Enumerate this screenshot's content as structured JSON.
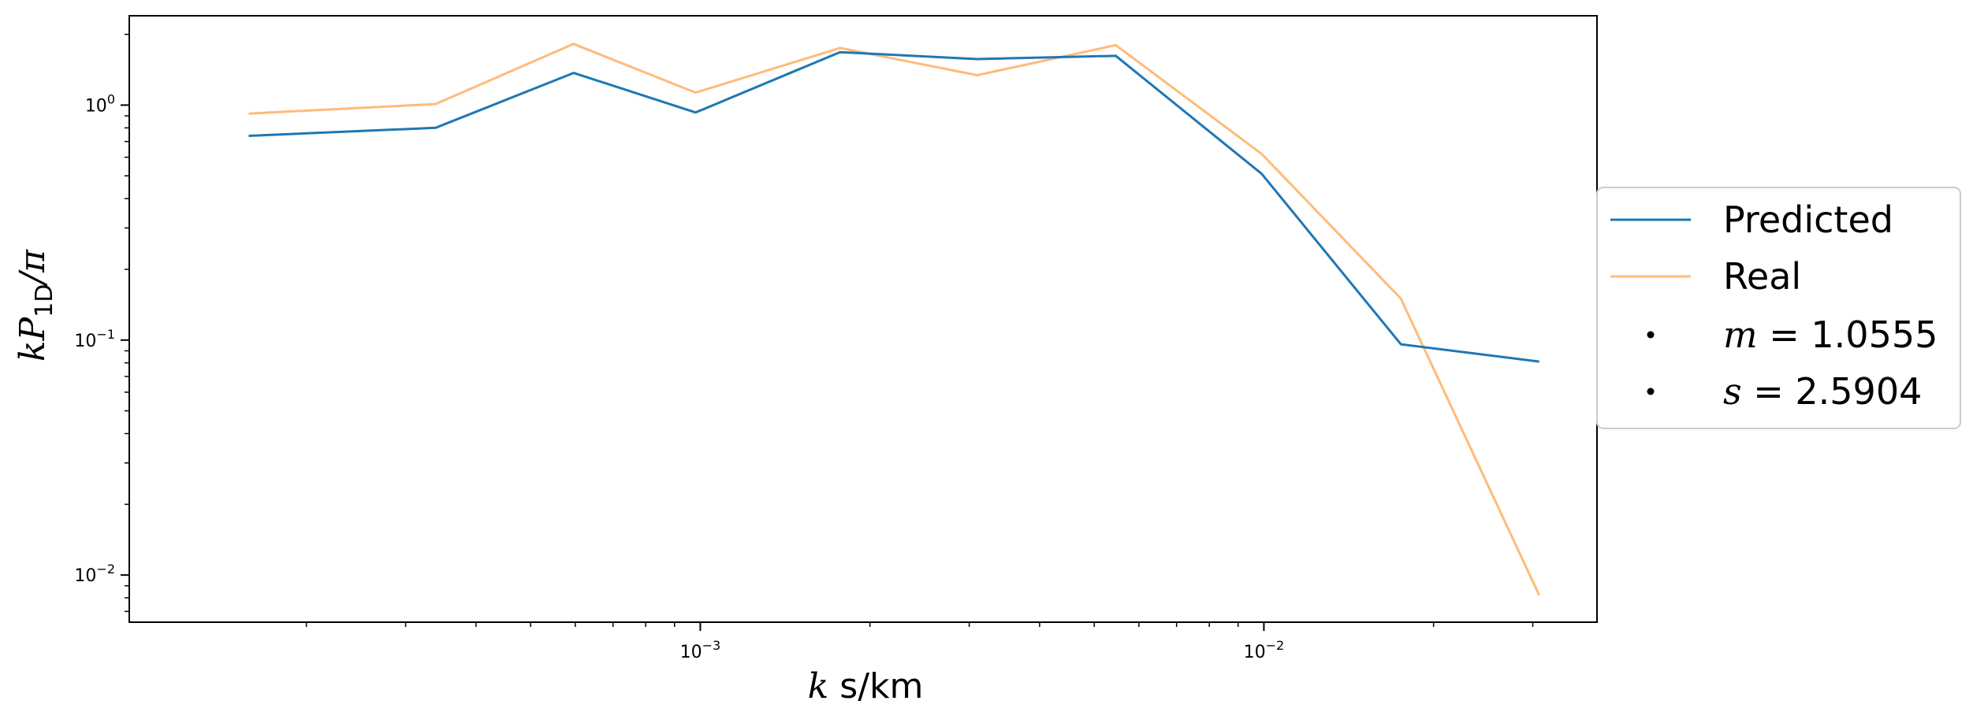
{
  "chart_data": {
    "type": "line",
    "xscale": "log",
    "yscale": "log",
    "xlim": [
      9.7e-05,
      0.039
    ],
    "ylim": [
      0.0063,
      2.4
    ],
    "xlabel": {
      "math": "k",
      "text": " s/km"
    },
    "ylabel": {
      "main": "kP",
      "sub": "1D",
      "tail": "/π"
    },
    "x_major_ticks": [
      {
        "value": 0.001,
        "base": "10",
        "exp": "−3"
      },
      {
        "value": 0.01,
        "base": "10",
        "exp": "−2"
      }
    ],
    "y_major_ticks": [
      {
        "value": 1,
        "base": "10",
        "exp": "0"
      },
      {
        "value": 0.1,
        "base": "10",
        "exp": "−1"
      },
      {
        "value": 0.01,
        "base": "10",
        "exp": "−2"
      }
    ],
    "x": [
      0.000158,
      0.000339,
      0.000596,
      0.000981,
      0.00177,
      0.0031,
      0.00546,
      0.00991,
      0.0175,
      0.0308
    ],
    "series": [
      {
        "name": "Predicted",
        "color": "#1f77b4",
        "values": [
          0.74,
          0.8,
          1.37,
          0.93,
          1.68,
          1.57,
          1.62,
          0.51,
          0.096,
          0.081
        ]
      },
      {
        "name": "Real",
        "color": "#ffbb78",
        "values": [
          0.92,
          1.01,
          1.82,
          1.13,
          1.75,
          1.34,
          1.8,
          0.62,
          0.15,
          0.0082
        ]
      }
    ],
    "legend": {
      "placement": "right, outside",
      "extra_entries": [
        {
          "symbol": "m",
          "value": " = 1.0555"
        },
        {
          "symbol": "s",
          "value": " = 2.5904"
        }
      ]
    },
    "grid": false
  }
}
